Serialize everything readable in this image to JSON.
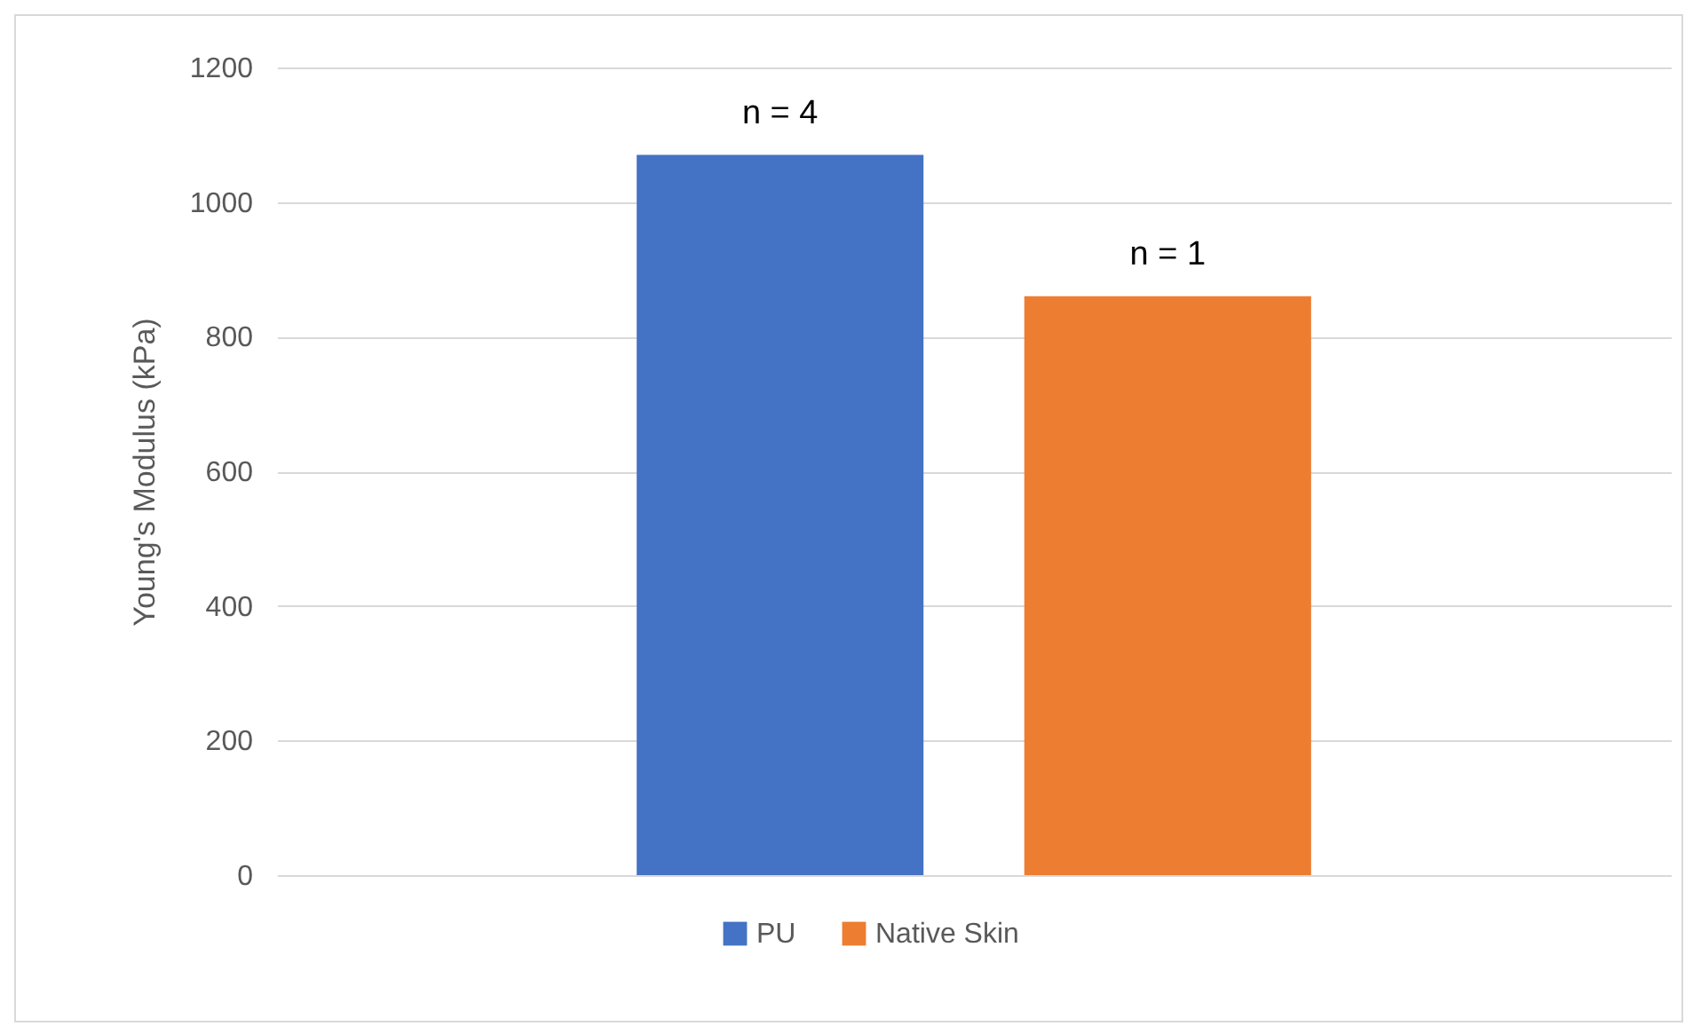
{
  "chart_data": {
    "type": "bar",
    "categories": [
      null
    ],
    "ylabel": "Young's Modulus (kPa)",
    "series": [
      {
        "name": "PU",
        "color": "#4472c4",
        "values": [
          1070
        ]
      },
      {
        "name": "Native Skin",
        "color": "#ed7d31",
        "values": [
          860
        ]
      }
    ],
    "annotations": [
      {
        "text": "n = 4",
        "y": 1070
      },
      {
        "text": "n = 1",
        "y": 860
      }
    ],
    "ylim": [
      0,
      1200
    ],
    "yticks": [
      0,
      200,
      400,
      600,
      800,
      1000,
      1200
    ],
    "grid": "y",
    "legend": "bottom",
    "tick_labels": "y"
  }
}
